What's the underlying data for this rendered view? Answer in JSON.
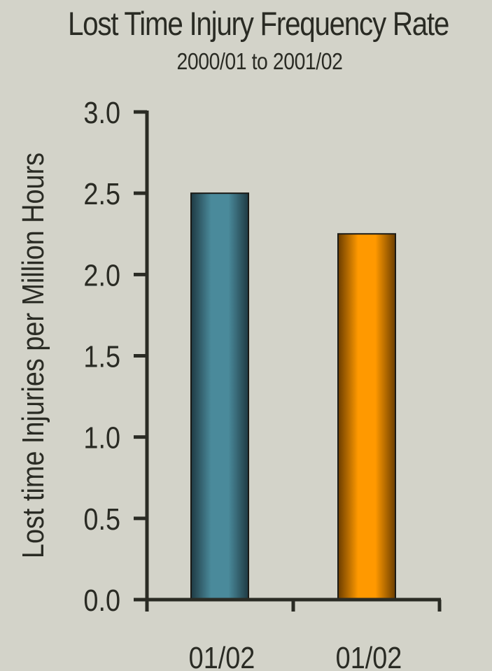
{
  "colors": {
    "background": "#d3d3c9",
    "axis": "#2a2b24",
    "text": "#2a2b24"
  },
  "chart_data": {
    "type": "bar",
    "title": "Lost Time Injury Frequency Rate",
    "subtitle": "2000/01 to 2001/02",
    "xlabel": "",
    "ylabel": "Lost time Injuries per Million Hours",
    "categories": [
      "01/02",
      "01/02"
    ],
    "values": [
      2.5,
      2.25
    ],
    "bar_colors": [
      "#4a8a9b",
      "#ff9900"
    ],
    "ylim": [
      0,
      3
    ],
    "y_ticks": [
      "0.0",
      "0.5",
      "1.0",
      "1.5",
      "2.0",
      "2.5",
      "3.0"
    ],
    "grid": false,
    "legend": "none"
  }
}
